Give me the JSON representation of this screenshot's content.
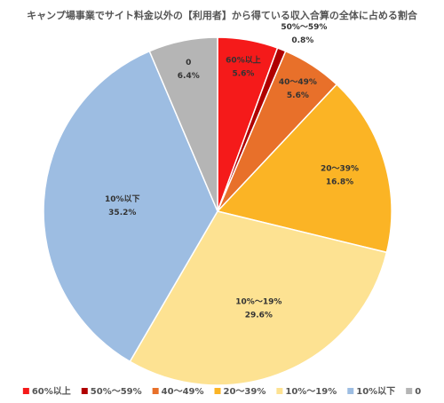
{
  "chart_data": {
    "type": "pie",
    "title": "キャンプ場事業でサイト料金以外の【利用者】から得ている収入合算の全体に占める割合",
    "categories": [
      "60%以上",
      "50%～59%",
      "40～49%",
      "20～39%",
      "10%～19%",
      "10%以下",
      "0"
    ],
    "values": [
      5.6,
      0.8,
      5.6,
      16.8,
      29.6,
      35.2,
      6.4
    ],
    "value_labels": [
      "5.6%",
      "0.8%",
      "5.6%",
      "16.8%",
      "29.6%",
      "35.2%",
      "6.4%"
    ],
    "colors": [
      "#f51a1a",
      "#b00000",
      "#e8702a",
      "#fbb425",
      "#fde292",
      "#9dbde2",
      "#b5b5b5"
    ],
    "legend": "bottom"
  }
}
